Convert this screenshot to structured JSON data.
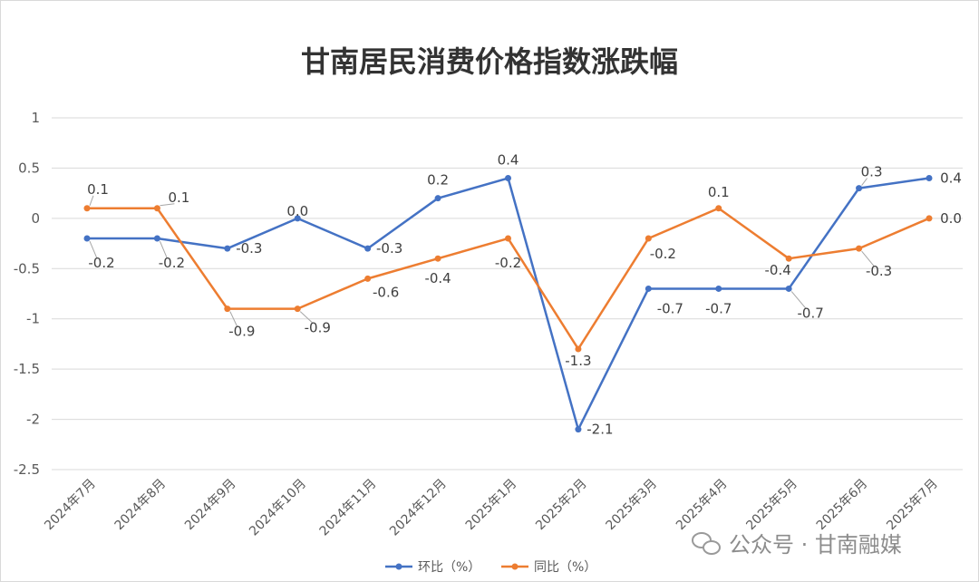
{
  "chart_data": {
    "type": "line",
    "title": "甘南居民消费价格指数涨跌幅",
    "xlabel": "",
    "ylabel": "",
    "categories": [
      "2024年7月",
      "2024年8月",
      "2024年9月",
      "2024年10月",
      "2024年11月",
      "2024年12月",
      "2025年1月",
      "2025年2月",
      "2025年3月",
      "2025年4月",
      "2025年5月",
      "2025年6月",
      "2025年7月"
    ],
    "series": [
      {
        "name": "环比（%）",
        "color": "#4472c4",
        "values": [
          -0.2,
          -0.2,
          -0.3,
          0.0,
          -0.3,
          0.2,
          0.4,
          -2.1,
          -0.7,
          -0.7,
          -0.7,
          0.3,
          0.4
        ],
        "labels": [
          "-0.2",
          "-0.2",
          "-0.3",
          "0.0",
          "-0.3",
          "0.2",
          "0.4",
          "-2.1",
          "-0.7",
          "-0.7",
          "-0.7",
          "0.3",
          "0.4"
        ]
      },
      {
        "name": "同比（%）",
        "color": "#ed7d31",
        "values": [
          0.1,
          0.1,
          -0.9,
          -0.9,
          -0.6,
          -0.4,
          -0.2,
          -1.3,
          -0.2,
          0.1,
          -0.4,
          -0.3,
          0.0
        ],
        "labels": [
          "0.1",
          "0.1",
          "-0.9",
          "-0.9",
          "-0.6",
          "-0.4",
          "-0.2",
          "-1.3",
          "-0.2",
          "0.1",
          "-0.4",
          "-0.3",
          "0.0"
        ]
      }
    ],
    "ylim": [
      -2.5,
      1
    ],
    "yticks": [
      1,
      0.5,
      0,
      -0.5,
      -1,
      -1.5,
      -2,
      -2.5
    ],
    "ytick_labels": [
      "1",
      "0.5",
      "0",
      "-0.5",
      "-1",
      "-1.5",
      "-2",
      "-2.5"
    ],
    "grid": true,
    "legend": "bottom"
  },
  "watermark": {
    "text": "公众号 · 甘南融媒",
    "icon": "wechat-icon"
  }
}
